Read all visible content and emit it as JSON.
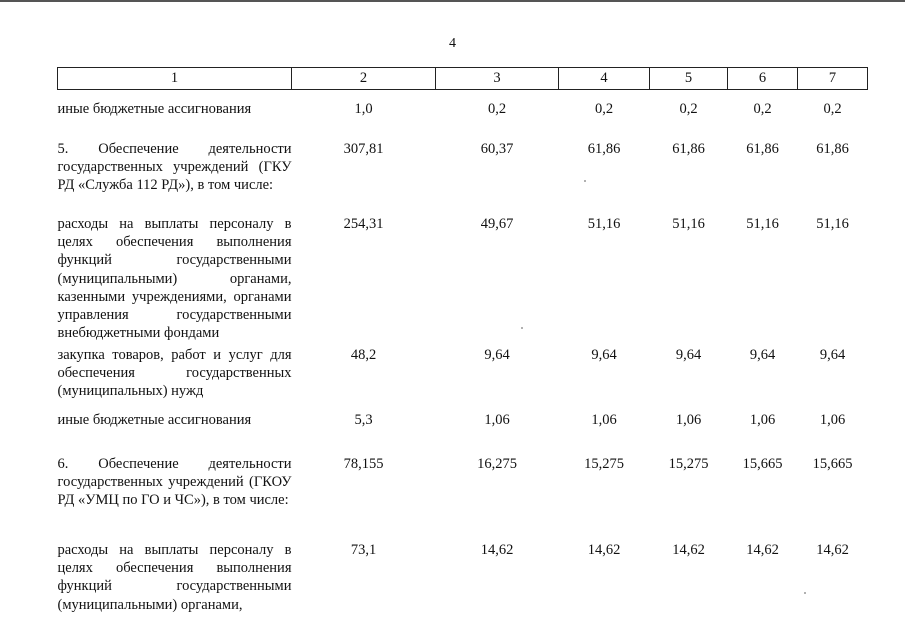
{
  "page_number": "4",
  "header": [
    "1",
    "2",
    "3",
    "4",
    "5",
    "6",
    "7"
  ],
  "rows": [
    {
      "kind": "sub",
      "description": "иные бюджетные ассигнования",
      "values": [
        "1,0",
        "0,2",
        "0,2",
        "0,2",
        "0,2",
        "0,2"
      ]
    },
    {
      "kind": "item",
      "description": "5. Обеспечение деятельности государственных учреждений (ГКУ РД «Служба 112 РД»), в том числе:",
      "values": [
        "307,81",
        "60,37",
        "61,86",
        "61,86",
        "61,86",
        "61,86"
      ]
    },
    {
      "kind": "sub",
      "description": "расходы на выплаты персоналу в целях обеспечения выполнения функций государственными (муниципальными) органами, казенными учреждениями, органами управления государственными внебюджетными фондами",
      "values": [
        "254,31",
        "49,67",
        "51,16",
        "51,16",
        "51,16",
        "51,16"
      ]
    },
    {
      "kind": "sub",
      "description": "закупка товаров, работ и услуг для обеспечения государственных (муниципальных) нужд",
      "values": [
        "48,2",
        "9,64",
        "9,64",
        "9,64",
        "9,64",
        "9,64"
      ]
    },
    {
      "kind": "sub",
      "description": "иные бюджетные ассигнования",
      "values": [
        "5,3",
        "1,06",
        "1,06",
        "1,06",
        "1,06",
        "1,06"
      ]
    },
    {
      "kind": "item",
      "description": "6. Обеспечение деятельности государственных учреждений (ГКОУ РД «УМЦ по ГО и ЧС»), в том числе:",
      "values": [
        "78,155",
        "16,275",
        "15,275",
        "15,275",
        "15,665",
        "15,665"
      ]
    },
    {
      "kind": "sub",
      "description": "расходы на выплаты персоналу в целях обеспечения выполнения функций государственными (муниципальными) органами,",
      "values": [
        "73,1",
        "14,62",
        "14,62",
        "14,62",
        "14,62",
        "14,62"
      ]
    }
  ]
}
